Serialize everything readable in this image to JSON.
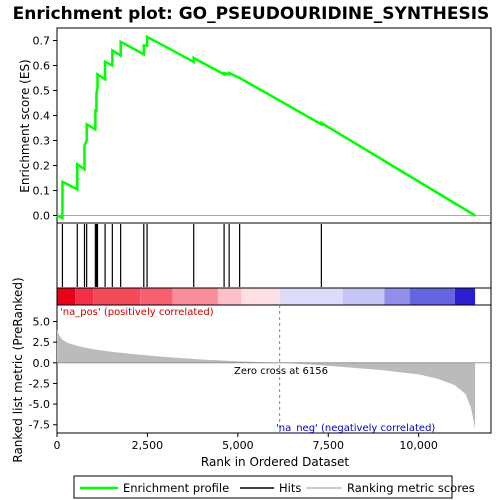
{
  "chart_data": {
    "type": "line",
    "title": "Enrichment plot: GO_PSEUDOURIDINE_SYNTHESIS",
    "es_panel": {
      "ylabel": "Enrichment score (ES)",
      "ylim": [
        -0.03,
        0.75
      ],
      "yticks": [
        "0.0",
        "0.1",
        "0.2",
        "0.3",
        "0.4",
        "0.5",
        "0.6",
        "0.7"
      ],
      "ytick_values": [
        0.0,
        0.1,
        0.2,
        0.3,
        0.4,
        0.5,
        0.6,
        0.7
      ],
      "series": [
        {
          "name": "Enrichment profile",
          "color": "#00ff00",
          "x": [
            0,
            150,
            151,
            560,
            561,
            760,
            761,
            820,
            821,
            1060,
            1061,
            1090,
            1091,
            1120,
            1121,
            1330,
            1331,
            1530,
            1531,
            1760,
            1761,
            2400,
            2401,
            2490,
            2491,
            3780,
            3781,
            4620,
            4621,
            4760,
            4761,
            5050,
            5051,
            7310,
            7311,
            11560
          ],
          "y": [
            0.0,
            -0.01,
            0.135,
            0.105,
            0.205,
            0.185,
            0.28,
            0.3,
            0.365,
            0.345,
            0.42,
            0.42,
            0.49,
            0.51,
            0.565,
            0.545,
            0.615,
            0.6,
            0.66,
            0.64,
            0.695,
            0.645,
            0.68,
            0.68,
            0.715,
            0.615,
            0.63,
            0.565,
            0.57,
            0.565,
            0.57,
            0.55,
            0.55,
            0.365,
            0.37,
            0.0
          ]
        }
      ]
    },
    "hits": [
      150,
      560,
      760,
      820,
      1060,
      1090,
      1120,
      1330,
      1530,
      1760,
      2400,
      2490,
      3780,
      4620,
      4760,
      5050,
      7310
    ],
    "rank_panel": {
      "ylabel": "Ranked list metric (PreRanked)",
      "xlabel": "Rank in Ordered Dataset",
      "ylim": [
        -8.5,
        7.0
      ],
      "yticks": [
        "5.0",
        "2.5",
        "0.0",
        "-2.5",
        "-5.0",
        "-7.5"
      ],
      "ytick_values": [
        5.0,
        2.5,
        0.0,
        -2.5,
        -5.0,
        -7.5
      ],
      "xlim": [
        0,
        12000
      ],
      "xticks": [
        "0",
        "2,500",
        "5,000",
        "7,500",
        "10,000"
      ],
      "xtick_values": [
        0,
        2500,
        5000,
        7500,
        10000
      ],
      "metric_x": [
        0,
        50,
        150,
        300,
        600,
        1000,
        1500,
        2000,
        3000,
        4000,
        5000,
        6156,
        7000,
        8000,
        9000,
        10000,
        10500,
        11000,
        11300,
        11450,
        11560
      ],
      "metric_y": [
        4.0,
        3.4,
        2.8,
        2.4,
        2.0,
        1.65,
        1.35,
        1.1,
        0.7,
        0.4,
        0.18,
        0.0,
        -0.2,
        -0.55,
        -0.9,
        -1.4,
        -1.9,
        -2.7,
        -3.8,
        -5.5,
        -8.0
      ],
      "zero_cross_rank": 6156,
      "zero_cross_label": "Zero cross at 6156",
      "pos_label": "'na_pos' (positively correlated)",
      "neg_label": "'na_neg' (negatively correlated)"
    },
    "total_ranks": 11560,
    "gradient_bar": {
      "segments": [
        {
          "end": 500,
          "color": "#e8001a"
        },
        {
          "end": 1000,
          "color": "#f33045"
        },
        {
          "end": 2300,
          "color": "#f54a5a"
        },
        {
          "end": 3200,
          "color": "#f86070"
        },
        {
          "end": 4450,
          "color": "#fa8e98"
        },
        {
          "end": 5100,
          "color": "#fcc0c6"
        },
        {
          "end": 6156,
          "color": "#fde0e3"
        },
        {
          "end": 7900,
          "color": "#dcdcf8"
        },
        {
          "end": 9050,
          "color": "#c6c6f4"
        },
        {
          "end": 9750,
          "color": "#9090ec"
        },
        {
          "end": 11000,
          "color": "#6565e2"
        },
        {
          "end": 11560,
          "color": "#2a1fd0"
        }
      ]
    },
    "legend": {
      "placement": "bottom",
      "items": [
        {
          "label": "Enrichment profile",
          "color": "#00ff00"
        },
        {
          "label": "Hits",
          "color": "#000000"
        },
        {
          "label": "Ranking metric scores",
          "color": "#bbbbbb"
        }
      ]
    }
  }
}
